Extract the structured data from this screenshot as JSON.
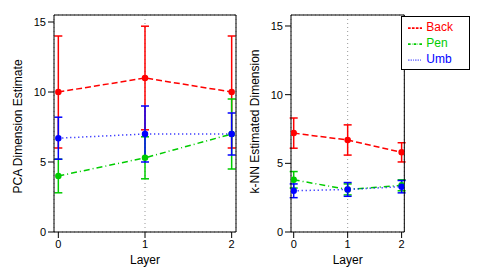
{
  "chart_data": [
    {
      "type": "line",
      "y_label": "PCA Dimension Estimate",
      "x_label": "Layer",
      "x": [
        0,
        1,
        2
      ],
      "xlim": [
        -0.05,
        2.05
      ],
      "xticks": [
        0,
        1,
        2
      ],
      "ylim": [
        0,
        15.5
      ],
      "yticks": [
        0,
        5,
        10,
        15
      ],
      "grid": true,
      "series": [
        {
          "name": "Back",
          "color": "#ff0000",
          "line_style": "dashed",
          "marker": "circle",
          "values": [
            10,
            11,
            10
          ],
          "error": [
            4,
            3.7,
            4
          ]
        },
        {
          "name": "Pen",
          "color": "#00cc00",
          "line_style": "dashdot",
          "marker": "circle",
          "values": [
            4,
            5.3,
            7
          ],
          "error": [
            1.2,
            1.5,
            2.5
          ]
        },
        {
          "name": "Umb",
          "color": "#0000ff",
          "line_style": "dotted",
          "marker": "circle",
          "values": [
            6.7,
            7,
            7
          ],
          "error": [
            1.5,
            2,
            1.5
          ]
        }
      ]
    },
    {
      "type": "line",
      "y_label": "k-NN Estimated Dimension",
      "x_label": "Layer",
      "x": [
        0,
        1,
        2
      ],
      "xlim": [
        -0.05,
        2.05
      ],
      "xticks": [
        0,
        1,
        2
      ],
      "ylim": [
        0,
        15.8
      ],
      "yticks": [
        0,
        5,
        10,
        15
      ],
      "grid": true,
      "legend": "upper right",
      "series": [
        {
          "name": "Back",
          "color": "#ff0000",
          "line_style": "dashed",
          "marker": "circle",
          "values": [
            7.2,
            6.7,
            5.8
          ],
          "error": [
            1.1,
            1.1,
            0.7
          ]
        },
        {
          "name": "Pen",
          "color": "#00cc00",
          "line_style": "dashdot",
          "marker": "circle",
          "values": [
            3.8,
            3.1,
            3.4
          ],
          "error": [
            0.6,
            0.4,
            0.4
          ]
        },
        {
          "name": "Umb",
          "color": "#0000ff",
          "line_style": "dotted",
          "marker": "circle",
          "values": [
            3.0,
            3.1,
            3.3
          ],
          "error": [
            0.5,
            0.5,
            0.45
          ]
        }
      ]
    }
  ]
}
